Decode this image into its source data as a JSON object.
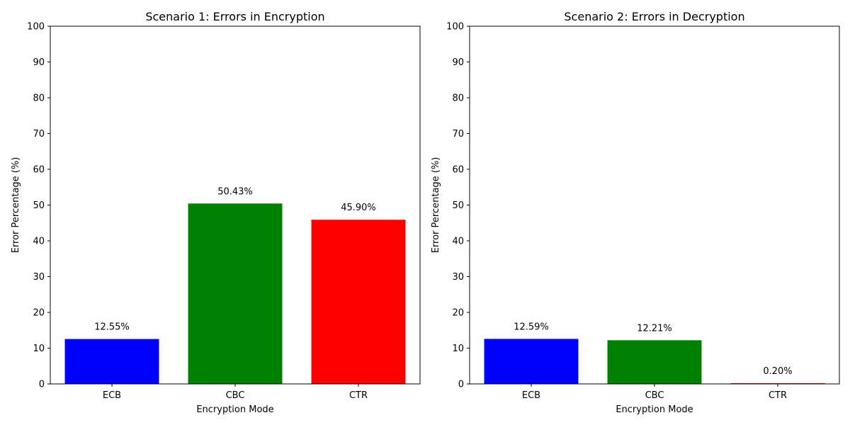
{
  "chart_data": [
    {
      "type": "bar",
      "title": "Scenario 1: Errors in Encryption",
      "xlabel": "Encryption Mode",
      "ylabel": "Error Percentage (%)",
      "ylim": [
        0,
        100
      ],
      "yticks": [
        0,
        10,
        20,
        30,
        40,
        50,
        60,
        70,
        80,
        90,
        100
      ],
      "categories": [
        "ECB",
        "CBC",
        "CTR"
      ],
      "values": [
        12.55,
        50.43,
        45.9
      ],
      "data_labels": [
        "12.55%",
        "50.43%",
        "45.90%"
      ],
      "colors": [
        "#0000ff",
        "#008000",
        "#ff0000"
      ],
      "grid": false,
      "legend": "none"
    },
    {
      "type": "bar",
      "title": "Scenario 2: Errors in Decryption",
      "xlabel": "Encryption Mode",
      "ylabel": "Error Percentage (%)",
      "ylim": [
        0,
        100
      ],
      "yticks": [
        0,
        10,
        20,
        30,
        40,
        50,
        60,
        70,
        80,
        90,
        100
      ],
      "categories": [
        "ECB",
        "CBC",
        "CTR"
      ],
      "values": [
        12.59,
        12.21,
        0.2
      ],
      "data_labels": [
        "12.59%",
        "12.21%",
        "0.20%"
      ],
      "colors": [
        "#0000ff",
        "#008000",
        "#ff0000"
      ],
      "grid": false,
      "legend": "none"
    }
  ]
}
